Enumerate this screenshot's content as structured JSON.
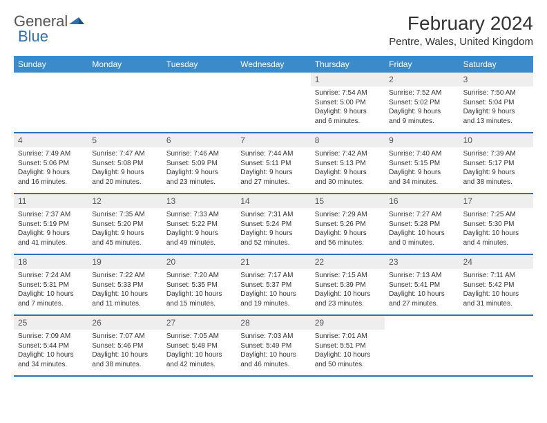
{
  "logo": {
    "part1": "General",
    "part2": "Blue"
  },
  "title": "February 2024",
  "location": "Pentre, Wales, United Kingdom",
  "colors": {
    "header_bg": "#3b8bca",
    "border": "#2f6fb0",
    "daynum_bg": "#eeeeee",
    "logo_blue": "#2f6fb0"
  },
  "weekdays": [
    "Sunday",
    "Monday",
    "Tuesday",
    "Wednesday",
    "Thursday",
    "Friday",
    "Saturday"
  ],
  "weeks": [
    [
      null,
      null,
      null,
      null,
      {
        "n": "1",
        "sunrise": "Sunrise: 7:54 AM",
        "sunset": "Sunset: 5:00 PM",
        "day1": "Daylight: 9 hours",
        "day2": "and 6 minutes."
      },
      {
        "n": "2",
        "sunrise": "Sunrise: 7:52 AM",
        "sunset": "Sunset: 5:02 PM",
        "day1": "Daylight: 9 hours",
        "day2": "and 9 minutes."
      },
      {
        "n": "3",
        "sunrise": "Sunrise: 7:50 AM",
        "sunset": "Sunset: 5:04 PM",
        "day1": "Daylight: 9 hours",
        "day2": "and 13 minutes."
      }
    ],
    [
      {
        "n": "4",
        "sunrise": "Sunrise: 7:49 AM",
        "sunset": "Sunset: 5:06 PM",
        "day1": "Daylight: 9 hours",
        "day2": "and 16 minutes."
      },
      {
        "n": "5",
        "sunrise": "Sunrise: 7:47 AM",
        "sunset": "Sunset: 5:08 PM",
        "day1": "Daylight: 9 hours",
        "day2": "and 20 minutes."
      },
      {
        "n": "6",
        "sunrise": "Sunrise: 7:46 AM",
        "sunset": "Sunset: 5:09 PM",
        "day1": "Daylight: 9 hours",
        "day2": "and 23 minutes."
      },
      {
        "n": "7",
        "sunrise": "Sunrise: 7:44 AM",
        "sunset": "Sunset: 5:11 PM",
        "day1": "Daylight: 9 hours",
        "day2": "and 27 minutes."
      },
      {
        "n": "8",
        "sunrise": "Sunrise: 7:42 AM",
        "sunset": "Sunset: 5:13 PM",
        "day1": "Daylight: 9 hours",
        "day2": "and 30 minutes."
      },
      {
        "n": "9",
        "sunrise": "Sunrise: 7:40 AM",
        "sunset": "Sunset: 5:15 PM",
        "day1": "Daylight: 9 hours",
        "day2": "and 34 minutes."
      },
      {
        "n": "10",
        "sunrise": "Sunrise: 7:39 AM",
        "sunset": "Sunset: 5:17 PM",
        "day1": "Daylight: 9 hours",
        "day2": "and 38 minutes."
      }
    ],
    [
      {
        "n": "11",
        "sunrise": "Sunrise: 7:37 AM",
        "sunset": "Sunset: 5:19 PM",
        "day1": "Daylight: 9 hours",
        "day2": "and 41 minutes."
      },
      {
        "n": "12",
        "sunrise": "Sunrise: 7:35 AM",
        "sunset": "Sunset: 5:20 PM",
        "day1": "Daylight: 9 hours",
        "day2": "and 45 minutes."
      },
      {
        "n": "13",
        "sunrise": "Sunrise: 7:33 AM",
        "sunset": "Sunset: 5:22 PM",
        "day1": "Daylight: 9 hours",
        "day2": "and 49 minutes."
      },
      {
        "n": "14",
        "sunrise": "Sunrise: 7:31 AM",
        "sunset": "Sunset: 5:24 PM",
        "day1": "Daylight: 9 hours",
        "day2": "and 52 minutes."
      },
      {
        "n": "15",
        "sunrise": "Sunrise: 7:29 AM",
        "sunset": "Sunset: 5:26 PM",
        "day1": "Daylight: 9 hours",
        "day2": "and 56 minutes."
      },
      {
        "n": "16",
        "sunrise": "Sunrise: 7:27 AM",
        "sunset": "Sunset: 5:28 PM",
        "day1": "Daylight: 10 hours",
        "day2": "and 0 minutes."
      },
      {
        "n": "17",
        "sunrise": "Sunrise: 7:25 AM",
        "sunset": "Sunset: 5:30 PM",
        "day1": "Daylight: 10 hours",
        "day2": "and 4 minutes."
      }
    ],
    [
      {
        "n": "18",
        "sunrise": "Sunrise: 7:24 AM",
        "sunset": "Sunset: 5:31 PM",
        "day1": "Daylight: 10 hours",
        "day2": "and 7 minutes."
      },
      {
        "n": "19",
        "sunrise": "Sunrise: 7:22 AM",
        "sunset": "Sunset: 5:33 PM",
        "day1": "Daylight: 10 hours",
        "day2": "and 11 minutes."
      },
      {
        "n": "20",
        "sunrise": "Sunrise: 7:20 AM",
        "sunset": "Sunset: 5:35 PM",
        "day1": "Daylight: 10 hours",
        "day2": "and 15 minutes."
      },
      {
        "n": "21",
        "sunrise": "Sunrise: 7:17 AM",
        "sunset": "Sunset: 5:37 PM",
        "day1": "Daylight: 10 hours",
        "day2": "and 19 minutes."
      },
      {
        "n": "22",
        "sunrise": "Sunrise: 7:15 AM",
        "sunset": "Sunset: 5:39 PM",
        "day1": "Daylight: 10 hours",
        "day2": "and 23 minutes."
      },
      {
        "n": "23",
        "sunrise": "Sunrise: 7:13 AM",
        "sunset": "Sunset: 5:41 PM",
        "day1": "Daylight: 10 hours",
        "day2": "and 27 minutes."
      },
      {
        "n": "24",
        "sunrise": "Sunrise: 7:11 AM",
        "sunset": "Sunset: 5:42 PM",
        "day1": "Daylight: 10 hours",
        "day2": "and 31 minutes."
      }
    ],
    [
      {
        "n": "25",
        "sunrise": "Sunrise: 7:09 AM",
        "sunset": "Sunset: 5:44 PM",
        "day1": "Daylight: 10 hours",
        "day2": "and 34 minutes."
      },
      {
        "n": "26",
        "sunrise": "Sunrise: 7:07 AM",
        "sunset": "Sunset: 5:46 PM",
        "day1": "Daylight: 10 hours",
        "day2": "and 38 minutes."
      },
      {
        "n": "27",
        "sunrise": "Sunrise: 7:05 AM",
        "sunset": "Sunset: 5:48 PM",
        "day1": "Daylight: 10 hours",
        "day2": "and 42 minutes."
      },
      {
        "n": "28",
        "sunrise": "Sunrise: 7:03 AM",
        "sunset": "Sunset: 5:49 PM",
        "day1": "Daylight: 10 hours",
        "day2": "and 46 minutes."
      },
      {
        "n": "29",
        "sunrise": "Sunrise: 7:01 AM",
        "sunset": "Sunset: 5:51 PM",
        "day1": "Daylight: 10 hours",
        "day2": "and 50 minutes."
      },
      null,
      null
    ]
  ]
}
